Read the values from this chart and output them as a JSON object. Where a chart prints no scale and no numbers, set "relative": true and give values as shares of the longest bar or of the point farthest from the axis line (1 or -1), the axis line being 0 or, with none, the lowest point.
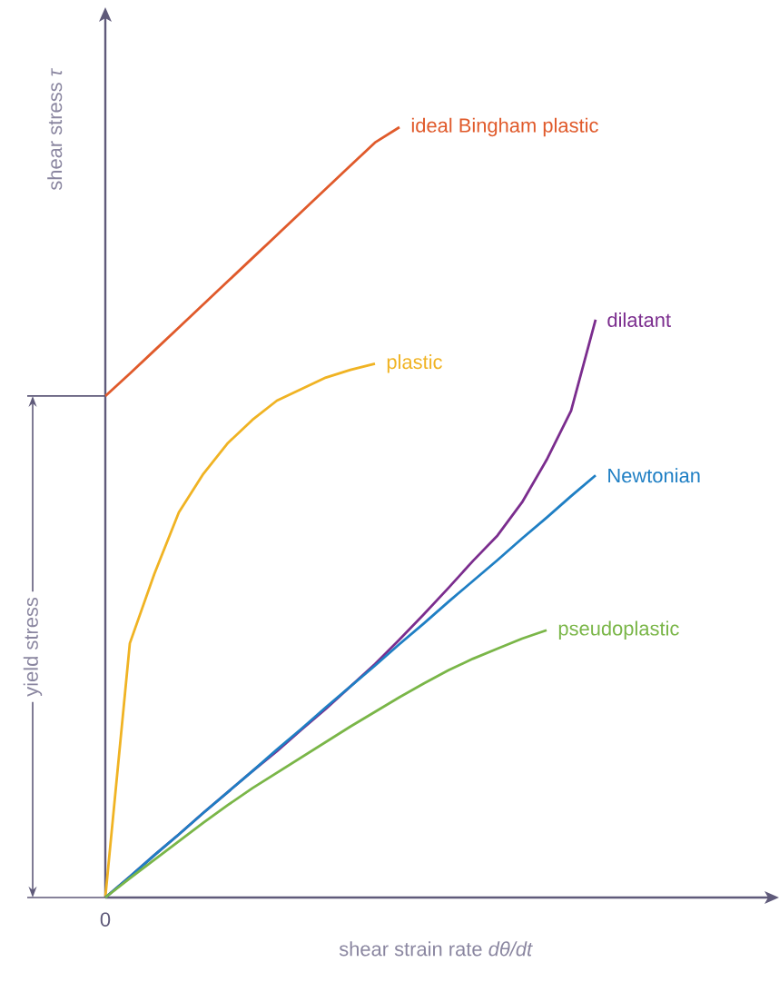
{
  "chart_data": {
    "type": "line",
    "relative": true,
    "xlabel": "shear strain rate *dθ/dt*",
    "ylabel": "shear stress *τ*",
    "categories": [
      null,
      null,
      null,
      null,
      null,
      null,
      null,
      null,
      null,
      null,
      null,
      null,
      null,
      null,
      null,
      null,
      null,
      null,
      null,
      null,
      null
    ],
    "series": [
      {
        "name": "ideal Bingham plastic",
        "color": "#e05a2b",
        "values": [
          0.651,
          0.68,
          0.71,
          0.74,
          0.77,
          0.8,
          0.83,
          0.86,
          0.89,
          0.92,
          0.95,
          0.98,
          1.0,
          null,
          null,
          null,
          null,
          null,
          null,
          null,
          null
        ]
      },
      {
        "name": "plastic",
        "color": "#f0b323",
        "values": [
          0,
          0.33,
          0.42,
          0.5,
          0.55,
          0.59,
          0.62,
          0.645,
          0.66,
          0.675,
          0.685,
          0.693,
          null,
          null,
          null,
          null,
          null,
          null,
          null,
          null,
          null
        ]
      },
      {
        "name": "dilatant",
        "color": "#7b2d8e",
        "values": [
          0,
          0.027,
          0.055,
          0.082,
          0.11,
          0.137,
          0.164,
          0.19,
          0.218,
          0.245,
          0.274,
          0.303,
          0.335,
          0.368,
          0.402,
          0.437,
          0.47,
          0.513,
          0.568,
          0.632,
          0.75
        ]
      },
      {
        "name": "Newtonian",
        "color": "#1f7fc4",
        "values": [
          0,
          0.027,
          0.055,
          0.082,
          0.11,
          0.137,
          0.164,
          0.192,
          0.219,
          0.247,
          0.274,
          0.301,
          0.329,
          0.356,
          0.384,
          0.411,
          0.438,
          0.466,
          0.493,
          0.521,
          0.548
        ]
      },
      {
        "name": "pseudoplastic",
        "color": "#7ab648",
        "values": [
          0,
          0.025,
          0.049,
          0.073,
          0.097,
          0.12,
          0.142,
          0.162,
          0.182,
          0.202,
          0.222,
          0.241,
          0.26,
          0.278,
          0.295,
          0.31,
          0.323,
          0.336,
          0.347,
          null,
          null
        ]
      }
    ],
    "annotations": [
      "0",
      "yield stress"
    ]
  }
}
